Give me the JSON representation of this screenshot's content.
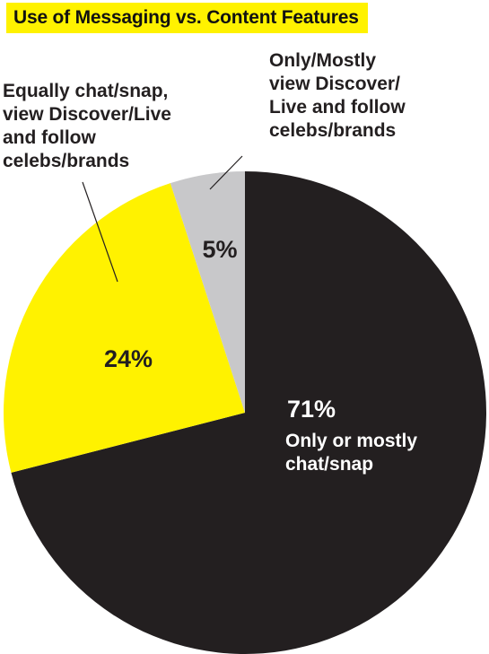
{
  "chart_data": {
    "type": "pie",
    "title": "Use of Messaging vs. Content Features",
    "slices": [
      {
        "label_lines": [
          "Only or mostly",
          "chat/snap"
        ],
        "value": 71,
        "value_label": "71%",
        "color": "#231f20",
        "label_color": "#ffffff"
      },
      {
        "label_lines": [
          "Equally chat/snap,",
          "view Discover/Live",
          "and follow",
          "celebs/brands"
        ],
        "value": 24,
        "value_label": "24%",
        "color": "#fff200",
        "label_color": "#231f20"
      },
      {
        "label_lines": [
          "Only/Mostly",
          "view Discover/",
          "Live and follow",
          "celebs/brands"
        ],
        "value": 5,
        "value_label": "5%",
        "color": "#c8c8ca",
        "label_color": "#231f20"
      }
    ],
    "start_angle": "12 o'clock",
    "direction": "clockwise",
    "accent_colors": {
      "title_background": "#fff200",
      "text": "#231f20"
    }
  }
}
